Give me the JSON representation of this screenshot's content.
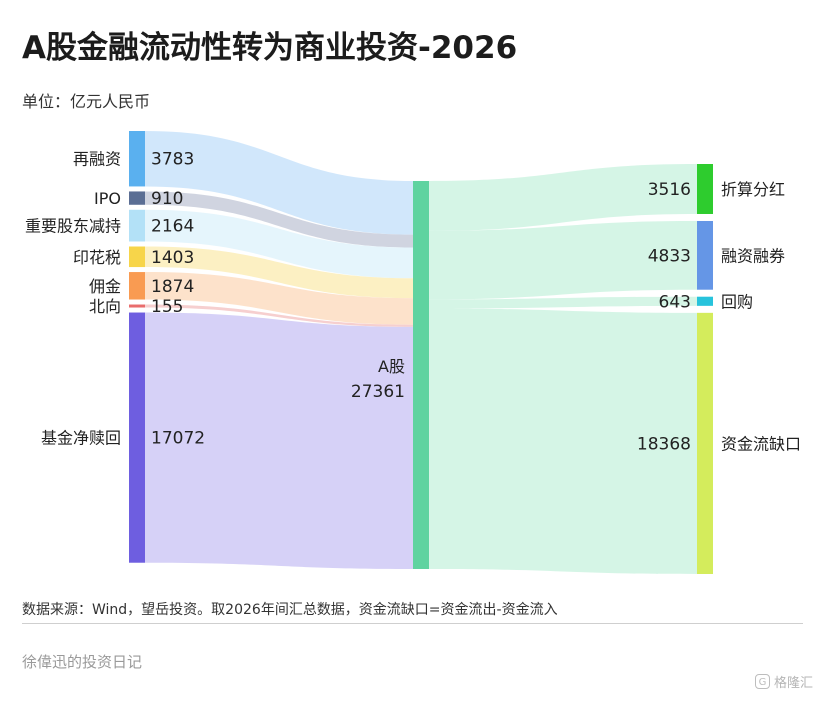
{
  "title": "A股金融流动性转为商业投资-2026",
  "unit": "单位：亿元人民币",
  "note": "数据来源：Wind，望岳投资。取2026年间汇总数据，资金流缺口=资金流出-资金流入",
  "author": "徐偉迅的投资日记",
  "watermark": {
    "text": "格隆汇",
    "logo": "G"
  },
  "chart_data": {
    "type": "sankey",
    "center": {
      "name": "A股",
      "value": "27361"
    },
    "sources": [
      {
        "name": "再融资",
        "value": 3783,
        "color": "#5ab0ef",
        "flow": "#cfe6fb"
      },
      {
        "name": "IPO",
        "value": 910,
        "color": "#5b6e94",
        "flow": "#cdd2de"
      },
      {
        "name": "重要股东减持",
        "value": 2164,
        "color": "#b3e1f7",
        "flow": "#e4f4fc"
      },
      {
        "name": "印花税",
        "value": 1403,
        "color": "#f7d54a",
        "flow": "#fcefc0"
      },
      {
        "name": "佣金",
        "value": 1874,
        "color": "#f99b52",
        "flow": "#fde0c8"
      },
      {
        "name": "北向",
        "value": 155,
        "color": "#e96d6d",
        "flow": "#f6cccc"
      },
      {
        "name": "基金净赎回",
        "value": 17072,
        "color": "#6e5ee0",
        "flow": "#d4cff7"
      }
    ],
    "targets": [
      {
        "name": "折算分红",
        "value": 3516,
        "color": "#2ecc2e"
      },
      {
        "name": "融资融券",
        "value": 4833,
        "color": "#6596e6"
      },
      {
        "name": "回购",
        "value": 643,
        "color": "#27c3dc"
      },
      {
        "name": "资金流缺口",
        "value": 18368,
        "color": "#d4ec5c"
      }
    ],
    "center_color": "#5fd3a0",
    "out_flow_color": "#d3f4e5"
  }
}
